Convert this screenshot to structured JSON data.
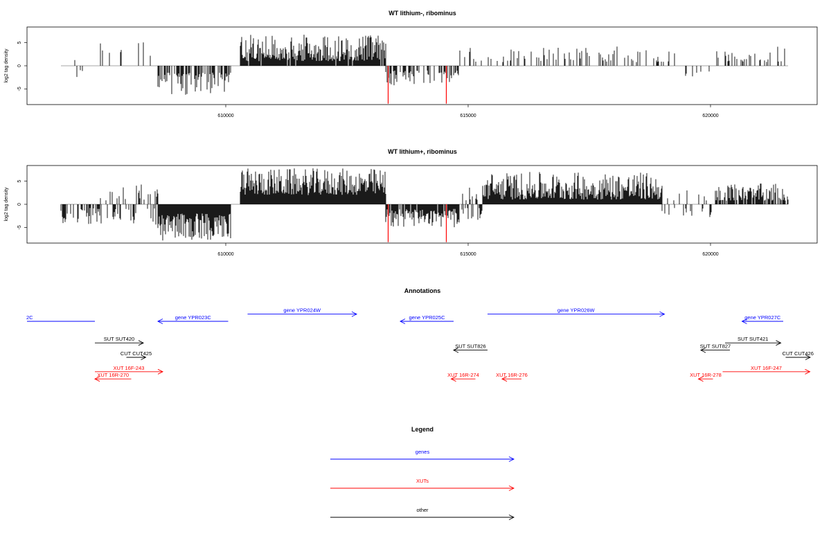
{
  "tracks": [
    {
      "title": "WT lithium-, ribominus",
      "ylabel": "log2 tag density",
      "y_ticks": [
        -5,
        0,
        5
      ],
      "x_ticks": [
        610000,
        615000,
        620000
      ],
      "xlim": [
        605900,
        622200
      ],
      "ylim": [
        -8.4,
        8.4
      ],
      "data_range": [
        606600,
        621600
      ],
      "segments": [
        {
          "from": 606600,
          "to": 607400,
          "sign": 0,
          "min": 0.8,
          "max": 3.5,
          "density": 0.12
        },
        {
          "from": 607400,
          "to": 608600,
          "sign": 1,
          "min": 0.8,
          "max": 5.5,
          "density": 0.08
        },
        {
          "from": 608600,
          "to": 610100,
          "sign": -1,
          "min": 1.5,
          "max": 6.3,
          "density": 0.65
        },
        {
          "from": 610300,
          "to": 613300,
          "sign": 1,
          "min": 1.0,
          "max": 6.8,
          "density": 0.95
        },
        {
          "from": 613300,
          "to": 614800,
          "sign": -1,
          "min": 1.0,
          "max": 4.5,
          "density": 0.45
        },
        {
          "from": 614800,
          "to": 616000,
          "sign": 1,
          "min": 0.8,
          "max": 3.9,
          "density": 0.18
        },
        {
          "from": 616000,
          "to": 618300,
          "sign": 1,
          "min": 0.8,
          "max": 4.2,
          "density": 0.22
        },
        {
          "from": 618300,
          "to": 619300,
          "sign": 1,
          "min": 0.8,
          "max": 3.7,
          "density": 0.25
        },
        {
          "from": 619300,
          "to": 620000,
          "sign": -1,
          "min": 0.8,
          "max": 3.5,
          "density": 0.1
        },
        {
          "from": 620100,
          "to": 621600,
          "sign": 1,
          "min": 0.8,
          "max": 4.2,
          "density": 0.2
        }
      ],
      "red_marks": [
        {
          "x": 613350,
          "y": -8.2
        },
        {
          "x": 614550,
          "y": -8.2
        }
      ]
    },
    {
      "title": "WT lithium+, ribominus",
      "ylabel": "log2 tag density",
      "y_ticks": [
        -5,
        0,
        5
      ],
      "x_ticks": [
        610000,
        615000,
        620000
      ],
      "xlim": [
        605900,
        622200
      ],
      "ylim": [
        -8.4,
        8.4
      ],
      "data_range": [
        606600,
        621600
      ],
      "segments": [
        {
          "from": 606600,
          "to": 607400,
          "sign": -1,
          "min": 0.8,
          "max": 4.5,
          "density": 0.6
        },
        {
          "from": 607400,
          "to": 608600,
          "sign": 0,
          "min": 0.8,
          "max": 4.5,
          "density": 0.6
        },
        {
          "from": 608600,
          "to": 610100,
          "sign": -1,
          "min": 2.0,
          "max": 8.0,
          "density": 1.0
        },
        {
          "from": 610300,
          "to": 613300,
          "sign": 1,
          "min": 2.0,
          "max": 7.8,
          "density": 1.0
        },
        {
          "from": 613300,
          "to": 614800,
          "sign": -1,
          "min": 1.0,
          "max": 5.0,
          "density": 0.85
        },
        {
          "from": 614800,
          "to": 615300,
          "sign": 0,
          "min": 0.8,
          "max": 4.0,
          "density": 0.7
        },
        {
          "from": 615300,
          "to": 619000,
          "sign": 1,
          "min": 1.0,
          "max": 7.0,
          "density": 1.0
        },
        {
          "from": 619000,
          "to": 620100,
          "sign": 0,
          "min": 0.8,
          "max": 3.0,
          "density": 0.35
        },
        {
          "from": 620100,
          "to": 621600,
          "sign": 1,
          "min": 0.8,
          "max": 4.5,
          "density": 0.8
        }
      ],
      "red_marks": [
        {
          "x": 613350,
          "y": -8.2
        },
        {
          "x": 614550,
          "y": -8.2
        }
      ]
    }
  ],
  "annotations": {
    "title": "Annotations",
    "features": [
      {
        "label": "2C",
        "color": "#0000ff",
        "row": 0,
        "start": 605900,
        "end": 607300,
        "dir": "none"
      },
      {
        "label": "gene YPR023C",
        "color": "#0000ff",
        "row": 0,
        "start": 608600,
        "end": 610050,
        "dir": "left"
      },
      {
        "label": "gene YPR024W",
        "color": "#0000ff",
        "row": -1,
        "start": 610450,
        "end": 612700,
        "dir": "right"
      },
      {
        "label": "gene YPR025C",
        "color": "#0000ff",
        "row": 0,
        "start": 613600,
        "end": 614700,
        "dir": "left"
      },
      {
        "label": "gene YPR026W",
        "color": "#0000ff",
        "row": -1,
        "start": 615400,
        "end": 619050,
        "dir": "right"
      },
      {
        "label": "gene YPR027C",
        "color": "#0000ff",
        "row": 0,
        "start": 620650,
        "end": 621500,
        "dir": "left"
      },
      {
        "label": "SUT SUT420",
        "color": "#000000",
        "row": 3,
        "start": 607300,
        "end": 608300,
        "dir": "right"
      },
      {
        "label": "CUT CUT425",
        "color": "#000000",
        "row": 5,
        "start": 607950,
        "end": 608350,
        "dir": "right"
      },
      {
        "label": "SUT SUT826",
        "color": "#000000",
        "row": 4,
        "start": 614700,
        "end": 615400,
        "dir": "left"
      },
      {
        "label": "SUT SUT827",
        "color": "#000000",
        "row": 4,
        "start": 619800,
        "end": 620400,
        "dir": "left"
      },
      {
        "label": "SUT SUT421",
        "color": "#000000",
        "row": 3,
        "start": 620300,
        "end": 621450,
        "dir": "right"
      },
      {
        "label": "CUT CUT426",
        "color": "#000000",
        "row": 5,
        "start": 621550,
        "end": 622100,
        "dir": "right"
      },
      {
        "label": "XUT 16F-243",
        "color": "#ff0000",
        "row": 7,
        "start": 607300,
        "end": 608700,
        "dir": "right"
      },
      {
        "label": "XUT 16R-270",
        "color": "#ff0000",
        "row": 8,
        "start": 607300,
        "end": 608050,
        "dir": "left"
      },
      {
        "label": "XUT 16R-274",
        "color": "#ff0000",
        "row": 8,
        "start": 614650,
        "end": 615150,
        "dir": "left"
      },
      {
        "label": "XUT 16R-276",
        "color": "#ff0000",
        "row": 8,
        "start": 615700,
        "end": 616100,
        "dir": "left"
      },
      {
        "label": "XUT 16R-278",
        "color": "#ff0000",
        "row": 8,
        "start": 619750,
        "end": 620050,
        "dir": "left"
      },
      {
        "label": "XUT 16F-247",
        "color": "#ff0000",
        "row": 7,
        "start": 620250,
        "end": 622050,
        "dir": "right"
      }
    ]
  },
  "legend": {
    "title": "Legend",
    "items": [
      {
        "label": "genes",
        "color": "#0000ff"
      },
      {
        "label": "XUTs",
        "color": "#ff0000"
      },
      {
        "label": "other",
        "color": "#000000"
      }
    ]
  },
  "colors": {
    "bars": "#000000",
    "axis": "#000000",
    "baseline": "#888888",
    "highlight": "#ff0000"
  }
}
